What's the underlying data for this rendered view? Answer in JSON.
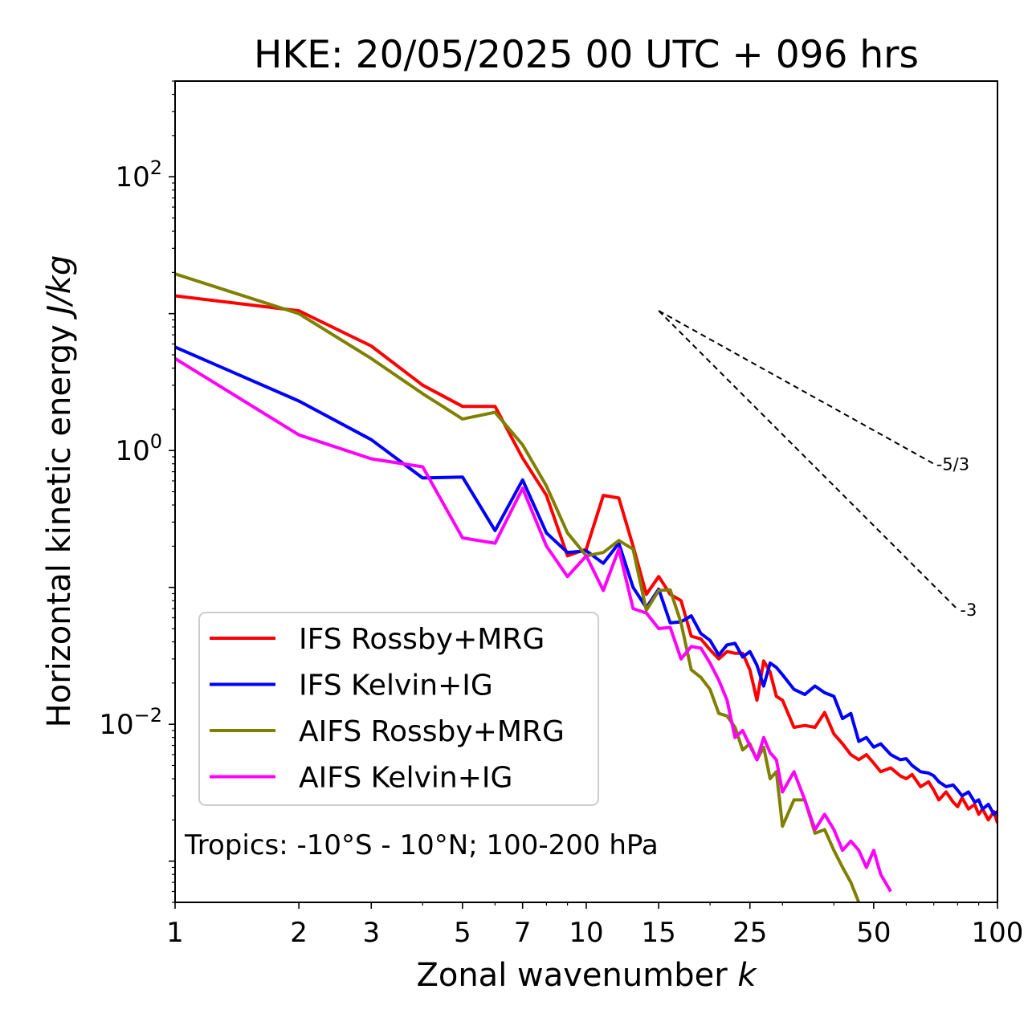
{
  "chart_data": {
    "type": "line",
    "title": "HKE: 20/05/2025 00 UTC + 096 hrs",
    "xlabel": "Zonal wavenumber",
    "xlabel_var": "k",
    "ylabel": "Horizontal kinetic energy",
    "ylabel_unit": "J/kg",
    "xscale": "log",
    "yscale": "log",
    "xlim": [
      1,
      100
    ],
    "ylim": [
      0.0005,
      500
    ],
    "x_ticks": [
      1,
      2,
      3,
      5,
      7,
      10,
      15,
      25,
      50,
      100
    ],
    "y_ticks": [
      {
        "value": 100,
        "base": "10",
        "exp": "2"
      },
      {
        "value": 1,
        "base": "10",
        "exp": "0"
      },
      {
        "value": 0.01,
        "base": "10",
        "exp": "−2"
      }
    ],
    "annotation": "Tropics: -10°S - 10°N; 100-200 hPa",
    "legend_position": "lower-left",
    "grid": false,
    "reference_lines": [
      {
        "label": "-5/3",
        "slope": -1.6667,
        "x": [
          15,
          70
        ],
        "y": [
          10.5,
          0.8
        ]
      },
      {
        "label": "-3",
        "slope": -3,
        "x": [
          15,
          80
        ],
        "y": [
          10.5,
          0.069
        ]
      }
    ],
    "series": [
      {
        "name": "IFS Rossby+MRG",
        "color": "#ff0000",
        "x": [
          1,
          2,
          3,
          4,
          5,
          6,
          7,
          8,
          9,
          10,
          11,
          12,
          13,
          14,
          15,
          16,
          17,
          18,
          19,
          20,
          21,
          22,
          23,
          24,
          25,
          26,
          27,
          28,
          29,
          30,
          32,
          34,
          36,
          38,
          40,
          42,
          44,
          46,
          48,
          50,
          52,
          55,
          58,
          60,
          62,
          65,
          68,
          70,
          72,
          75,
          78,
          80,
          82,
          85,
          88,
          90,
          92,
          95,
          98,
          100
        ],
        "y": [
          13.5,
          10.5,
          5.8,
          3.0,
          2.1,
          2.1,
          0.88,
          0.47,
          0.17,
          0.19,
          0.47,
          0.45,
          0.2,
          0.089,
          0.12,
          0.089,
          0.08,
          0.044,
          0.042,
          0.035,
          0.03,
          0.034,
          0.033,
          0.033,
          0.025,
          0.015,
          0.029,
          0.024,
          0.016,
          0.015,
          0.0095,
          0.0098,
          0.0095,
          0.0122,
          0.0085,
          0.0072,
          0.006,
          0.0055,
          0.006,
          0.0052,
          0.0045,
          0.0048,
          0.0042,
          0.004,
          0.0043,
          0.0035,
          0.0038,
          0.0033,
          0.0028,
          0.0032,
          0.0027,
          0.0025,
          0.0029,
          0.0024,
          0.0026,
          0.0022,
          0.0024,
          0.002,
          0.0023,
          0.0019
        ]
      },
      {
        "name": "IFS Kelvin+IG",
        "color": "#0000ff",
        "x": [
          1,
          2,
          3,
          4,
          5,
          6,
          7,
          8,
          9,
          10,
          11,
          12,
          13,
          14,
          15,
          16,
          17,
          18,
          19,
          20,
          21,
          22,
          23,
          24,
          25,
          26,
          27,
          28,
          29,
          30,
          32,
          34,
          36,
          38,
          40,
          42,
          44,
          46,
          48,
          50,
          52,
          55,
          58,
          60,
          62,
          65,
          68,
          70,
          72,
          75,
          78,
          80,
          82,
          85,
          88,
          90,
          92,
          95,
          98,
          100
        ],
        "y": [
          5.7,
          2.3,
          1.2,
          0.63,
          0.64,
          0.26,
          0.61,
          0.25,
          0.18,
          0.185,
          0.15,
          0.21,
          0.1,
          0.071,
          0.097,
          0.055,
          0.056,
          0.062,
          0.046,
          0.041,
          0.032,
          0.038,
          0.039,
          0.031,
          0.034,
          0.027,
          0.019,
          0.028,
          0.026,
          0.023,
          0.018,
          0.0165,
          0.019,
          0.017,
          0.016,
          0.011,
          0.012,
          0.0075,
          0.008,
          0.0068,
          0.0072,
          0.006,
          0.0055,
          0.0056,
          0.005,
          0.0045,
          0.0044,
          0.0042,
          0.0038,
          0.0035,
          0.0036,
          0.0033,
          0.003,
          0.0032,
          0.0027,
          0.0028,
          0.0024,
          0.0026,
          0.0022,
          0.0023
        ]
      },
      {
        "name": "AIFS Rossby+MRG",
        "color": "#808000",
        "x": [
          1,
          2,
          3,
          4,
          5,
          6,
          7,
          8,
          9,
          10,
          11,
          12,
          13,
          14,
          15,
          16,
          17,
          18,
          19,
          20,
          21,
          22,
          23,
          24,
          25,
          26,
          27,
          28,
          29,
          30,
          32,
          34,
          36,
          38,
          40,
          42,
          44,
          46
        ],
        "y": [
          19.5,
          10.0,
          4.7,
          2.6,
          1.7,
          1.9,
          1.1,
          0.55,
          0.25,
          0.17,
          0.18,
          0.22,
          0.19,
          0.068,
          0.095,
          0.096,
          0.055,
          0.025,
          0.022,
          0.018,
          0.012,
          0.0115,
          0.0095,
          0.0065,
          0.0072,
          0.0055,
          0.0068,
          0.004,
          0.0045,
          0.0018,
          0.0028,
          0.0028,
          0.0016,
          0.0017,
          0.0012,
          0.0009,
          0.0007,
          0.0005
        ]
      },
      {
        "name": "AIFS Kelvin+IG",
        "color": "#ff00ff",
        "x": [
          1,
          2,
          3,
          4,
          5,
          6,
          7,
          8,
          9,
          10,
          11,
          12,
          13,
          14,
          15,
          16,
          17,
          18,
          19,
          20,
          21,
          22,
          23,
          24,
          25,
          26,
          27,
          28,
          29,
          30,
          32,
          34,
          36,
          38,
          40,
          42,
          44,
          46,
          48,
          50,
          52,
          55
        ],
        "y": [
          4.7,
          1.3,
          0.87,
          0.76,
          0.23,
          0.21,
          0.53,
          0.2,
          0.12,
          0.17,
          0.095,
          0.19,
          0.07,
          0.065,
          0.05,
          0.051,
          0.03,
          0.037,
          0.036,
          0.028,
          0.021,
          0.015,
          0.008,
          0.009,
          0.007,
          0.0055,
          0.008,
          0.0062,
          0.0055,
          0.0032,
          0.0045,
          0.0028,
          0.0017,
          0.0022,
          0.0017,
          0.0012,
          0.0014,
          0.0012,
          0.0009,
          0.0012,
          0.0008,
          0.0006
        ]
      }
    ]
  }
}
